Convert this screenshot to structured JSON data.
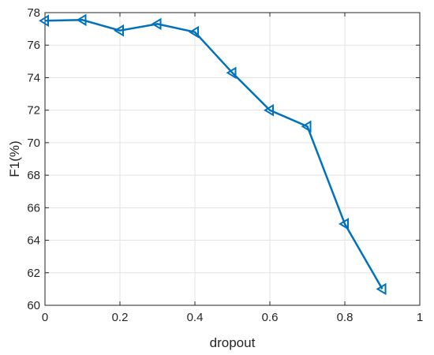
{
  "chart_data": {
    "type": "line",
    "title": "",
    "xlabel": "dropout",
    "ylabel": "F1(%)",
    "xlim": [
      0,
      1
    ],
    "ylim": [
      60,
      78
    ],
    "xticks": [
      0,
      0.2,
      0.4,
      0.6,
      0.8,
      1
    ],
    "xtick_labels": [
      "0",
      "0.2",
      "0.4",
      "0.6",
      "0.8",
      "1"
    ],
    "yticks": [
      60,
      62,
      64,
      66,
      68,
      70,
      72,
      74,
      76,
      78
    ],
    "ytick_labels": [
      "60",
      "62",
      "64",
      "66",
      "68",
      "70",
      "72",
      "74",
      "76",
      "78"
    ],
    "grid": true,
    "legend": "none",
    "x": [
      0,
      0.1,
      0.2,
      0.3,
      0.4,
      0.5,
      0.6,
      0.7,
      0.8,
      0.9
    ],
    "series": [
      {
        "values": [
          77.5,
          77.55,
          76.9,
          77.3,
          76.8,
          74.3,
          72.0,
          71.0,
          65.0,
          61.0
        ],
        "color": "#0072BD",
        "marker": "triangle-left"
      }
    ]
  }
}
